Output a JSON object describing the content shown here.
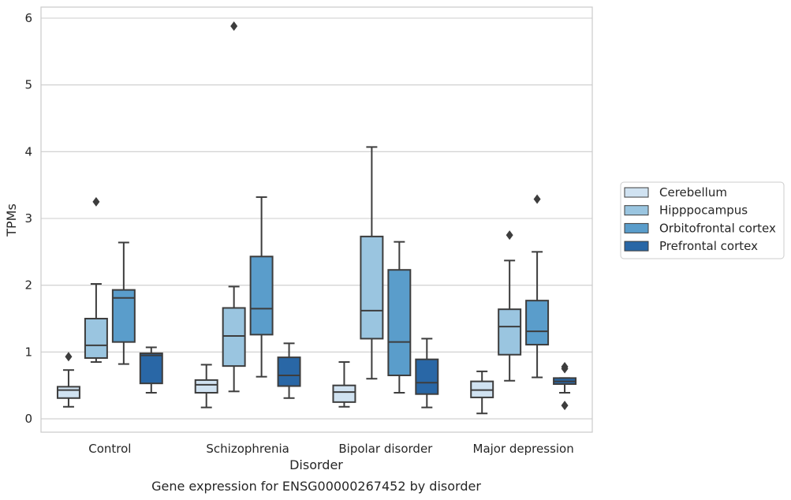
{
  "caption": "Gene expression for ENSG00000267452 by disorder",
  "chart_data": {
    "type": "box",
    "title": "",
    "xlabel": "Disorder",
    "ylabel": "TPMs",
    "ylim": [
      -0.2,
      6.18
    ],
    "yticks": [
      "0",
      "1",
      "2",
      "3",
      "4",
      "5",
      "6"
    ],
    "grid": true,
    "legend_position": "outside right",
    "categories": [
      "Control",
      "Schizophrenia",
      "Bipolar disorder",
      "Major depression"
    ],
    "series": [
      {
        "name": "Cerebellum",
        "color": "#d0e2f1",
        "boxes": [
          {
            "whislo": 0.18,
            "q1": 0.31,
            "med": 0.43,
            "q3": 0.48,
            "whishi": 0.73,
            "fliers": [
              0.93
            ]
          },
          {
            "whislo": 0.17,
            "q1": 0.39,
            "med": 0.51,
            "q3": 0.58,
            "whishi": 0.81,
            "fliers": []
          },
          {
            "whislo": 0.18,
            "q1": 0.25,
            "med": 0.4,
            "q3": 0.5,
            "whishi": 0.85,
            "fliers": []
          },
          {
            "whislo": 0.08,
            "q1": 0.32,
            "med": 0.43,
            "q3": 0.56,
            "whishi": 0.71,
            "fliers": []
          }
        ]
      },
      {
        "name": "Hipppocampus",
        "color": "#9ac5e0",
        "boxes": [
          {
            "whislo": 0.85,
            "q1": 0.91,
            "med": 1.1,
            "q3": 1.5,
            "whishi": 2.02,
            "fliers": [
              3.25
            ]
          },
          {
            "whislo": 0.41,
            "q1": 0.79,
            "med": 1.24,
            "q3": 1.66,
            "whishi": 1.98,
            "fliers": [
              5.88
            ]
          },
          {
            "whislo": 0.6,
            "q1": 1.2,
            "med": 1.62,
            "q3": 2.73,
            "whishi": 4.07,
            "fliers": []
          },
          {
            "whislo": 0.57,
            "q1": 0.96,
            "med": 1.38,
            "q3": 1.64,
            "whishi": 2.37,
            "fliers": [
              2.75
            ]
          }
        ]
      },
      {
        "name": "Orbitofrontal cortex",
        "color": "#5a9dcb",
        "boxes": [
          {
            "whislo": 0.82,
            "q1": 1.15,
            "med": 1.81,
            "q3": 1.93,
            "whishi": 2.64,
            "fliers": []
          },
          {
            "whislo": 0.63,
            "q1": 1.26,
            "med": 1.65,
            "q3": 2.43,
            "whishi": 3.32,
            "fliers": []
          },
          {
            "whislo": 0.39,
            "q1": 0.65,
            "med": 1.15,
            "q3": 2.23,
            "whishi": 2.65,
            "fliers": []
          },
          {
            "whislo": 0.62,
            "q1": 1.11,
            "med": 1.31,
            "q3": 1.77,
            "whishi": 2.5,
            "fliers": [
              3.29
            ]
          }
        ]
      },
      {
        "name": "Prefrontal cortex",
        "color": "#2967a6",
        "boxes": [
          {
            "whislo": 0.39,
            "q1": 0.53,
            "med": 0.95,
            "q3": 0.98,
            "whishi": 1.07,
            "fliers": []
          },
          {
            "whislo": 0.31,
            "q1": 0.49,
            "med": 0.65,
            "q3": 0.92,
            "whishi": 1.13,
            "fliers": []
          },
          {
            "whislo": 0.17,
            "q1": 0.37,
            "med": 0.54,
            "q3": 0.89,
            "whishi": 1.2,
            "fliers": []
          },
          {
            "whislo": 0.39,
            "q1": 0.52,
            "med": 0.56,
            "q3": 0.61,
            "whishi": 0.61,
            "fliers": [
              0.2,
              0.75,
              0.78
            ]
          }
        ]
      }
    ]
  }
}
